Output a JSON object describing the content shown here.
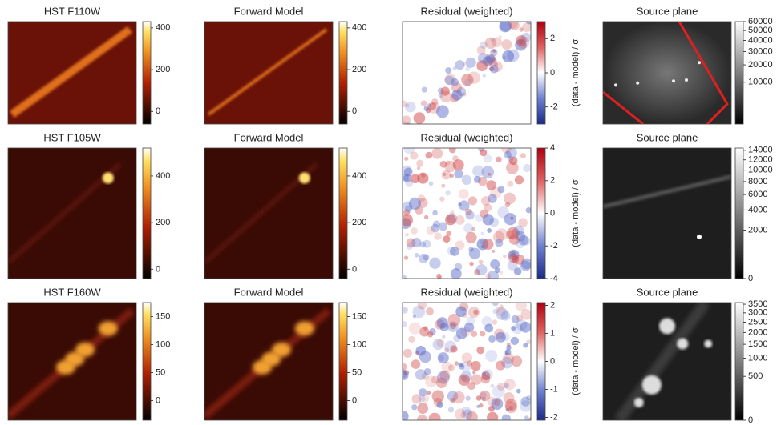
{
  "panels": [
    {
      "title": "HST F110W",
      "cmap": "afmhot",
      "scale": "linear",
      "lim": [
        -60,
        430
      ],
      "ticks": [
        0,
        200,
        400
      ]
    },
    {
      "title": "Forward Model",
      "cmap": "afmhot",
      "scale": "linear",
      "lim": [
        -60,
        430
      ],
      "ticks": [
        0,
        200,
        400
      ]
    },
    {
      "title": "Residual (weighted)",
      "cmap": "bwr",
      "scale": "linear",
      "lim": [
        -3,
        3
      ],
      "ticks": [
        -2,
        0,
        2
      ],
      "label": "(data - model) / σ"
    },
    {
      "title": "Source plane",
      "cmap": "gray",
      "scale": "sqrt",
      "lim": [
        0,
        60000
      ],
      "ticks": [
        10000,
        20000,
        30000,
        40000,
        50000,
        60000
      ]
    },
    {
      "title": "HST F105W",
      "cmap": "afmhot",
      "scale": "linear",
      "lim": [
        -40,
        520
      ],
      "ticks": [
        0,
        200,
        400
      ]
    },
    {
      "title": "Forward Model",
      "cmap": "afmhot",
      "scale": "linear",
      "lim": [
        -40,
        520
      ],
      "ticks": [
        0,
        200,
        400
      ]
    },
    {
      "title": "Residual (weighted)",
      "cmap": "bwr",
      "scale": "linear",
      "lim": [
        -4,
        4
      ],
      "ticks": [
        -4,
        -2,
        0,
        2,
        4
      ],
      "label": "(data - model) / σ"
    },
    {
      "title": "Source plane",
      "cmap": "gray",
      "scale": "sqrt",
      "lim": [
        0,
        14500
      ],
      "ticks": [
        0,
        2000,
        4000,
        6000,
        8000,
        10000,
        12000,
        14000
      ]
    },
    {
      "title": "HST F160W",
      "cmap": "afmhot",
      "scale": "linear",
      "lim": [
        -35,
        175
      ],
      "ticks": [
        0,
        50,
        100,
        150
      ]
    },
    {
      "title": "Forward Model",
      "cmap": "afmhot",
      "scale": "linear",
      "lim": [
        -35,
        175
      ],
      "ticks": [
        0,
        50,
        100,
        150
      ]
    },
    {
      "title": "Residual (weighted)",
      "cmap": "bwr",
      "scale": "linear",
      "lim": [
        -2.1,
        2.1
      ],
      "ticks": [
        -2,
        -1,
        0,
        1,
        2
      ],
      "label": "(data - model) / σ"
    },
    {
      "title": "Source plane",
      "cmap": "gray",
      "scale": "sqrt",
      "lim": [
        0,
        3600
      ],
      "ticks": [
        0,
        500,
        1000,
        1500,
        2000,
        2500,
        3000,
        3500
      ]
    }
  ]
}
